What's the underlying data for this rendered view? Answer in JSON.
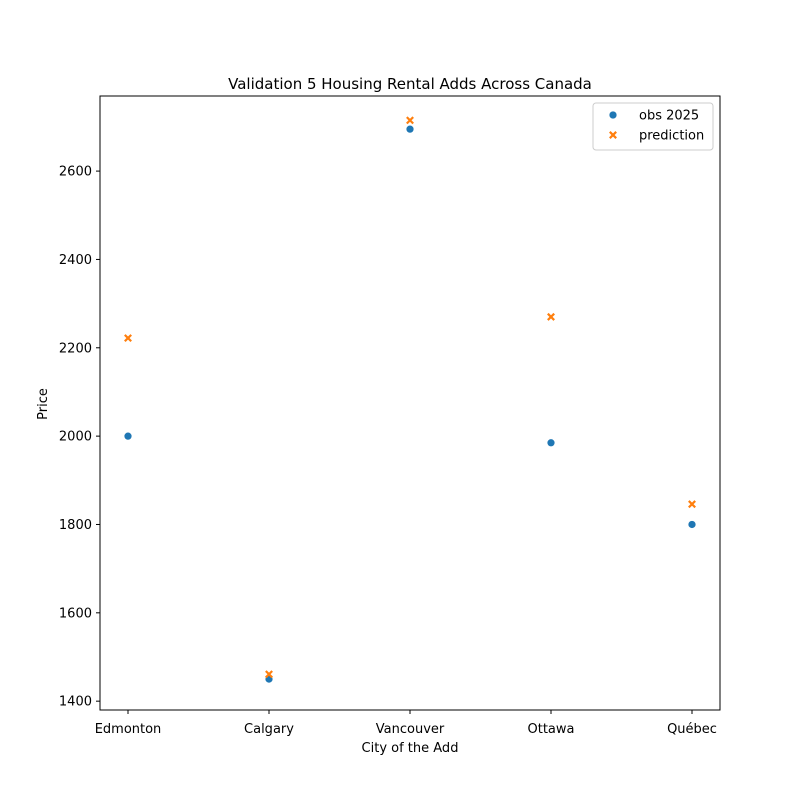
{
  "chart_data": {
    "type": "scatter",
    "title": "Validation 5 Housing Rental Adds Across Canada",
    "xlabel": "City of the Add",
    "ylabel": "Price",
    "categories": [
      "Edmonton",
      "Calgary",
      "Vancouver",
      "Ottawa",
      "Québec"
    ],
    "yticks": [
      1400,
      1600,
      1800,
      2000,
      2200,
      2400,
      2600
    ],
    "ylim": [
      1380,
      2770
    ],
    "grid": false,
    "legend_position": "top-right",
    "series": [
      {
        "name": "obs 2025",
        "marker": "circle",
        "color": "#1f77b4",
        "values": [
          2000,
          1450,
          2695,
          1985,
          1800
        ]
      },
      {
        "name": "prediction",
        "marker": "x",
        "color": "#ff7f0e",
        "values": [
          2222,
          1461,
          2715,
          2270,
          1846
        ]
      }
    ]
  }
}
